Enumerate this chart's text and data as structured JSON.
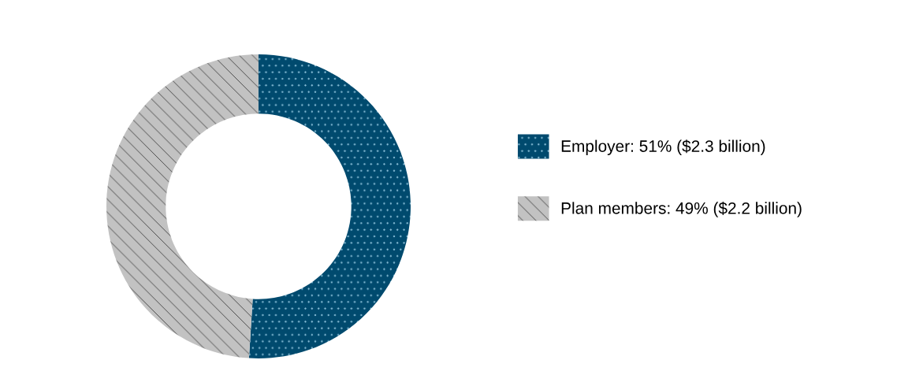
{
  "chart_data": {
    "type": "donut",
    "categories": [
      "Employer: 51% ($2.3 billion)",
      "Plan members: 49% ($2.2 billion)"
    ],
    "values": [
      51,
      49
    ],
    "colors": [
      "#004a6e",
      "#c2c2c2"
    ],
    "legend": "right"
  }
}
